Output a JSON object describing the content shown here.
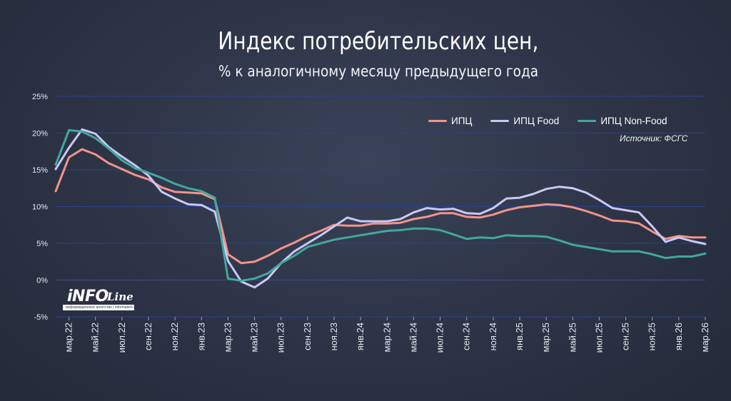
{
  "header": {
    "title": "Индекс потребительских цен,",
    "subtitle": "% к аналогичному месяцу предыдущего года"
  },
  "source": "Источник: ФСГС",
  "logo": {
    "main": "iNFO",
    "script": "Line",
    "tagline": "информационное агентство | information agency"
  },
  "chart_data": {
    "type": "line",
    "title": "Индекс потребительских цен,",
    "subtitle": "% к аналогичному месяцу предыдущего года",
    "y_unit": "%",
    "ylim": [
      -5,
      25
    ],
    "yticks": [
      -5,
      0,
      5,
      10,
      15,
      20,
      25
    ],
    "ytick_labels": [
      "-5%",
      "0%",
      "5%",
      "10%",
      "15%",
      "20%",
      "25%"
    ],
    "grid": true,
    "legend_position": "top-right",
    "x_tick_labels": [
      "мар.22",
      "май.22",
      "июл.22",
      "сен.22",
      "ноя.22",
      "янв.23",
      "мар.23",
      "май.23",
      "июл.23",
      "сен.23",
      "ноя.23",
      "янв.24",
      "мар.24",
      "май.24",
      "июл.24",
      "сен.24",
      "ноя.24",
      "янв.25",
      "мар.25",
      "май.25",
      "июл.25",
      "сен.25",
      "ноя.25",
      "янв.26",
      "мар.26"
    ],
    "x": [
      "фев.22",
      "мар.22",
      "апр.22",
      "май.22",
      "июн.22",
      "июл.22",
      "авг.22",
      "сен.22",
      "окт.22",
      "ноя.22",
      "дек.22",
      "янв.23",
      "фев.23",
      "мар.23",
      "апр.23",
      "май.23",
      "июн.23",
      "июл.23",
      "авг.23",
      "сен.23",
      "окт.23",
      "ноя.23",
      "дек.23",
      "янв.24",
      "фев.24",
      "мар.24",
      "апр.24",
      "май.24",
      "июн.24",
      "июл.24",
      "авг.24",
      "сен.24",
      "окт.24",
      "ноя.24",
      "дек.24",
      "янв.25",
      "фев.25",
      "мар.25",
      "апр.25",
      "май.25",
      "июн.25",
      "июл.25",
      "авг.25",
      "сен.25",
      "окт.25",
      "ноя.25",
      "дек.25",
      "янв.26",
      "фев.26",
      "мар.26"
    ],
    "series": [
      {
        "name": "ИПЦ",
        "color": "#f2948a",
        "values": [
          12.1,
          16.7,
          17.8,
          17.1,
          15.9,
          15.1,
          14.3,
          13.7,
          12.6,
          12.0,
          11.9,
          11.8,
          11.0,
          3.5,
          2.3,
          2.5,
          3.3,
          4.3,
          5.1,
          6.0,
          6.7,
          7.5,
          7.4,
          7.4,
          7.7,
          7.7,
          7.8,
          8.3,
          8.6,
          9.1,
          9.1,
          8.6,
          8.5,
          8.9,
          9.5,
          9.9,
          10.1,
          10.3,
          10.2,
          9.9,
          9.4,
          8.8,
          8.1,
          8.0,
          7.7,
          6.6,
          5.6,
          6.0,
          5.8,
          5.8
        ]
      },
      {
        "name": "ИПЦ Food",
        "color": "#c9c8f8",
        "values": [
          15.1,
          18.0,
          20.5,
          19.9,
          18.1,
          16.8,
          15.6,
          14.2,
          12.0,
          11.1,
          10.3,
          10.2,
          9.3,
          2.6,
          -0.2,
          -1.0,
          0.2,
          2.3,
          3.9,
          5.0,
          6.1,
          7.3,
          8.5,
          8.0,
          8.0,
          8.0,
          8.3,
          9.2,
          9.8,
          9.6,
          9.7,
          9.1,
          9.0,
          9.8,
          11.1,
          11.2,
          11.7,
          12.4,
          12.7,
          12.5,
          11.9,
          10.9,
          9.8,
          9.5,
          9.2,
          7.3,
          5.2,
          5.8,
          5.3,
          4.9
        ]
      },
      {
        "name": "ИПЦ Non-Food",
        "color": "#42a89c",
        "values": [
          15.7,
          20.4,
          20.2,
          19.3,
          17.9,
          16.3,
          15.2,
          14.6,
          13.9,
          13.1,
          12.5,
          12.1,
          11.2,
          0.2,
          -0.1,
          0.2,
          0.9,
          2.3,
          3.3,
          4.5,
          5.0,
          5.5,
          5.8,
          6.1,
          6.4,
          6.7,
          6.8,
          7.0,
          7.0,
          6.8,
          6.2,
          5.6,
          5.8,
          5.7,
          6.1,
          6.0,
          6.0,
          5.9,
          5.4,
          4.8,
          4.5,
          4.2,
          3.9,
          3.9,
          3.9,
          3.5,
          3.0,
          3.2,
          3.2,
          3.6
        ]
      }
    ]
  }
}
